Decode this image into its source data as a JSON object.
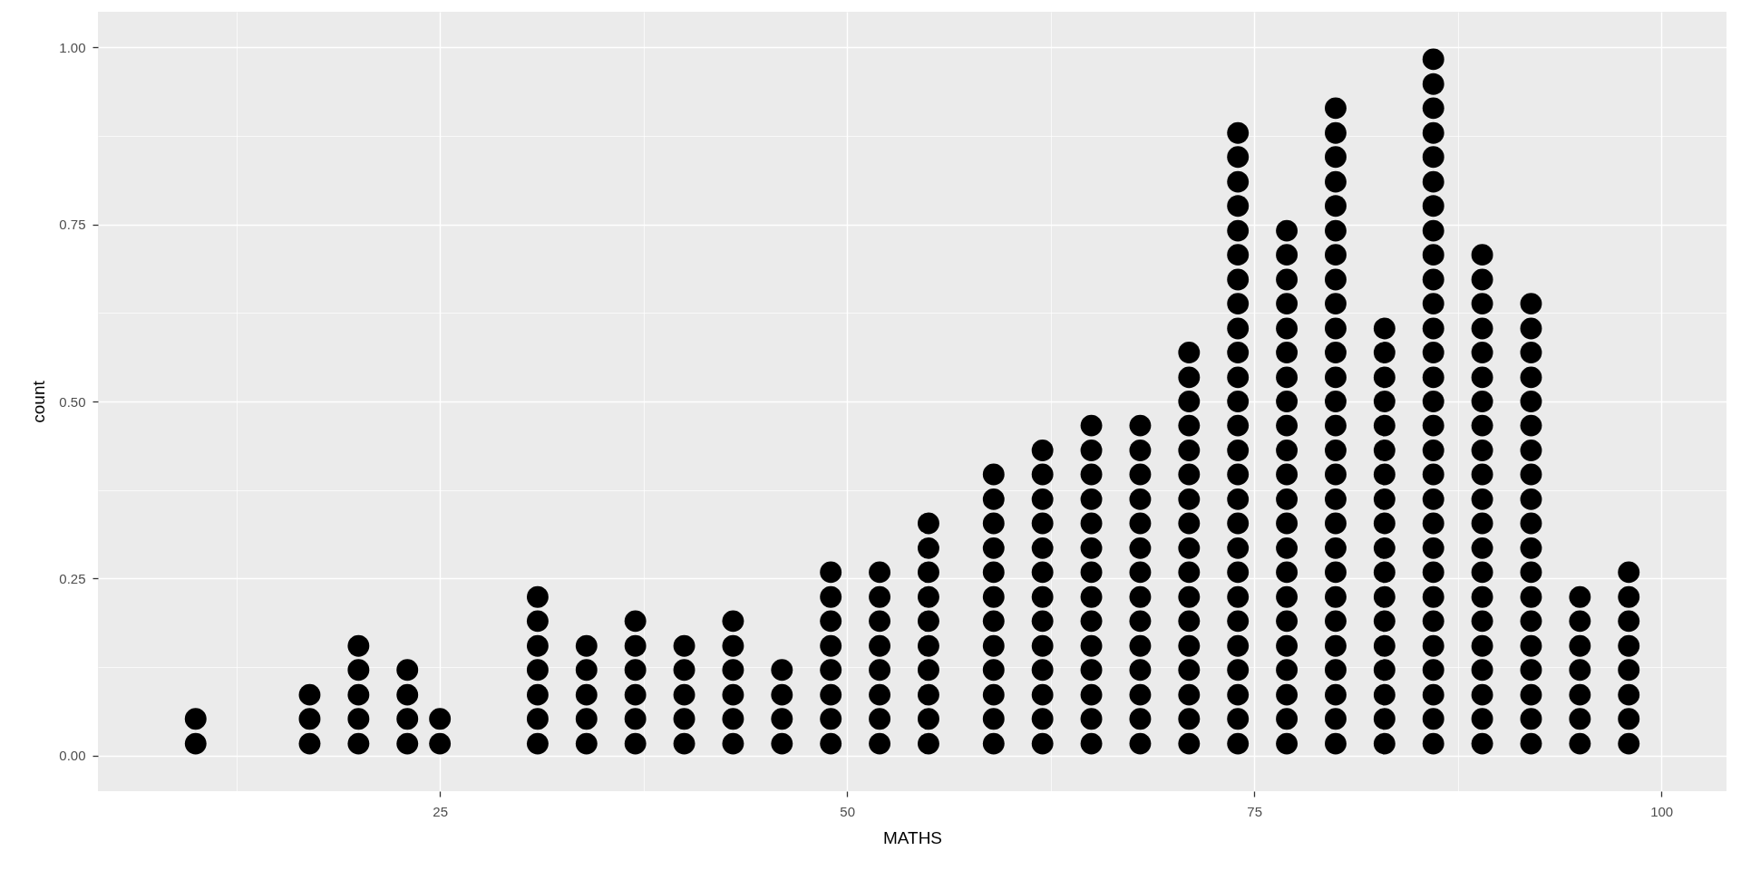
{
  "chart_data": {
    "type": "scatter",
    "xlabel": "MATHS",
    "ylabel": "count",
    "color": "#000000",
    "marker": "circle",
    "grid": true,
    "xlim": [
      4,
      104
    ],
    "xticks": [
      25,
      50,
      75,
      100
    ],
    "ylim": [
      -0.05,
      1.05
    ],
    "yticks": [
      {
        "value": 0,
        "label": "0.00"
      },
      0.25,
      {
        "value": 0.5,
        "label": "0.50"
      },
      0.75,
      {
        "value": 1,
        "label": "1.00"
      }
    ],
    "x": [
      10,
      10,
      17,
      17,
      17,
      20,
      20,
      20,
      20,
      20,
      23,
      23,
      23,
      23,
      25,
      25,
      31,
      31,
      31,
      31,
      31,
      31,
      31,
      34,
      34,
      34,
      34,
      34,
      37,
      37,
      37,
      37,
      37,
      37,
      40,
      40,
      40,
      40,
      40,
      43,
      43,
      43,
      43,
      43,
      43,
      46,
      46,
      46,
      46,
      49,
      49,
      49,
      49,
      49,
      49,
      49,
      49,
      52,
      52,
      52,
      52,
      52,
      52,
      52,
      52,
      55,
      55,
      55,
      55,
      55,
      55,
      55,
      55,
      55,
      55,
      59,
      59,
      59,
      59,
      59,
      59,
      59,
      59,
      59,
      59,
      59,
      59,
      62,
      62,
      62,
      62,
      62,
      62,
      62,
      62,
      62,
      62,
      62,
      62,
      62,
      65,
      65,
      65,
      65,
      65,
      65,
      65,
      65,
      65,
      65,
      65,
      65,
      65,
      65,
      68,
      68,
      68,
      68,
      68,
      68,
      68,
      68,
      68,
      68,
      68,
      68,
      68,
      68,
      71,
      71,
      71,
      71,
      71,
      71,
      71,
      71,
      71,
      71,
      71,
      71,
      71,
      71,
      71,
      71,
      71,
      74,
      74,
      74,
      74,
      74,
      74,
      74,
      74,
      74,
      74,
      74,
      74,
      74,
      74,
      74,
      74,
      74,
      74,
      74,
      74,
      74,
      74,
      74,
      74,
      74,
      74,
      77,
      77,
      77,
      77,
      77,
      77,
      77,
      77,
      77,
      77,
      77,
      77,
      77,
      77,
      77,
      77,
      77,
      77,
      77,
      77,
      77,
      77,
      80,
      80,
      80,
      80,
      80,
      80,
      80,
      80,
      80,
      80,
      80,
      80,
      80,
      80,
      80,
      80,
      80,
      80,
      80,
      80,
      80,
      80,
      80,
      80,
      80,
      80,
      80,
      83,
      83,
      83,
      83,
      83,
      83,
      83,
      83,
      83,
      83,
      83,
      83,
      83,
      83,
      83,
      83,
      83,
      83,
      86,
      86,
      86,
      86,
      86,
      86,
      86,
      86,
      86,
      86,
      86,
      86,
      86,
      86,
      86,
      86,
      86,
      86,
      86,
      86,
      86,
      86,
      86,
      86,
      86,
      86,
      86,
      86,
      86,
      89,
      89,
      89,
      89,
      89,
      89,
      89,
      89,
      89,
      89,
      89,
      89,
      89,
      89,
      89,
      89,
      89,
      89,
      89,
      89,
      89,
      92,
      92,
      92,
      92,
      92,
      92,
      92,
      92,
      92,
      92,
      92,
      92,
      92,
      92,
      92,
      92,
      92,
      92,
      92,
      95,
      95,
      95,
      95,
      95,
      95,
      95,
      98,
      98,
      98,
      98,
      98,
      98,
      98,
      98
    ],
    "values": [
      0.017,
      0.052,
      0.017,
      0.052,
      0.086,
      0.017,
      0.052,
      0.086,
      0.121,
      0.155,
      0.017,
      0.052,
      0.086,
      0.121,
      0.017,
      0.052,
      0.017,
      0.052,
      0.086,
      0.121,
      0.155,
      0.19,
      0.224,
      0.017,
      0.052,
      0.086,
      0.121,
      0.155,
      0.017,
      0.052,
      0.086,
      0.121,
      0.155,
      0.19,
      0.017,
      0.052,
      0.086,
      0.121,
      0.155,
      0.017,
      0.052,
      0.086,
      0.121,
      0.155,
      0.19,
      0.017,
      0.052,
      0.086,
      0.121,
      0.017,
      0.052,
      0.086,
      0.121,
      0.155,
      0.19,
      0.224,
      0.259,
      0.017,
      0.052,
      0.086,
      0.121,
      0.155,
      0.19,
      0.224,
      0.259,
      0.017,
      0.052,
      0.086,
      0.121,
      0.155,
      0.19,
      0.224,
      0.259,
      0.293,
      0.328,
      0.017,
      0.052,
      0.086,
      0.121,
      0.155,
      0.19,
      0.224,
      0.259,
      0.293,
      0.328,
      0.362,
      0.397,
      0.017,
      0.052,
      0.086,
      0.121,
      0.155,
      0.19,
      0.224,
      0.259,
      0.293,
      0.328,
      0.362,
      0.397,
      0.431,
      0.017,
      0.052,
      0.086,
      0.121,
      0.155,
      0.19,
      0.224,
      0.259,
      0.293,
      0.328,
      0.362,
      0.397,
      0.431,
      0.466,
      0.017,
      0.052,
      0.086,
      0.121,
      0.155,
      0.19,
      0.224,
      0.259,
      0.293,
      0.328,
      0.362,
      0.397,
      0.431,
      0.466,
      0.017,
      0.052,
      0.086,
      0.121,
      0.155,
      0.19,
      0.224,
      0.259,
      0.293,
      0.328,
      0.362,
      0.397,
      0.431,
      0.466,
      0.5,
      0.534,
      0.569,
      0.017,
      0.052,
      0.086,
      0.121,
      0.155,
      0.19,
      0.224,
      0.259,
      0.293,
      0.328,
      0.362,
      0.397,
      0.431,
      0.466,
      0.5,
      0.534,
      0.569,
      0.603,
      0.638,
      0.672,
      0.707,
      0.741,
      0.776,
      0.81,
      0.845,
      0.879,
      0.017,
      0.052,
      0.086,
      0.121,
      0.155,
      0.19,
      0.224,
      0.259,
      0.293,
      0.328,
      0.362,
      0.397,
      0.431,
      0.466,
      0.5,
      0.534,
      0.569,
      0.603,
      0.638,
      0.672,
      0.707,
      0.741,
      0.017,
      0.052,
      0.086,
      0.121,
      0.155,
      0.19,
      0.224,
      0.259,
      0.293,
      0.328,
      0.362,
      0.397,
      0.431,
      0.466,
      0.5,
      0.534,
      0.569,
      0.603,
      0.638,
      0.672,
      0.707,
      0.741,
      0.776,
      0.81,
      0.845,
      0.879,
      0.914,
      0.017,
      0.052,
      0.086,
      0.121,
      0.155,
      0.19,
      0.224,
      0.259,
      0.293,
      0.328,
      0.362,
      0.397,
      0.431,
      0.466,
      0.5,
      0.534,
      0.569,
      0.603,
      0.017,
      0.052,
      0.086,
      0.121,
      0.155,
      0.19,
      0.224,
      0.259,
      0.293,
      0.328,
      0.362,
      0.397,
      0.431,
      0.466,
      0.5,
      0.534,
      0.569,
      0.603,
      0.638,
      0.672,
      0.707,
      0.741,
      0.776,
      0.81,
      0.845,
      0.879,
      0.914,
      0.948,
      0.983,
      0.017,
      0.052,
      0.086,
      0.121,
      0.155,
      0.19,
      0.224,
      0.259,
      0.293,
      0.328,
      0.362,
      0.397,
      0.431,
      0.466,
      0.5,
      0.534,
      0.569,
      0.603,
      0.638,
      0.672,
      0.707,
      0.017,
      0.052,
      0.086,
      0.121,
      0.155,
      0.19,
      0.224,
      0.259,
      0.293,
      0.328,
      0.362,
      0.397,
      0.431,
      0.466,
      0.5,
      0.534,
      0.569,
      0.603,
      0.638,
      0.017,
      0.052,
      0.086,
      0.121,
      0.155,
      0.19,
      0.224,
      0.017,
      0.052,
      0.086,
      0.121,
      0.155,
      0.19,
      0.224,
      0.259
    ]
  }
}
